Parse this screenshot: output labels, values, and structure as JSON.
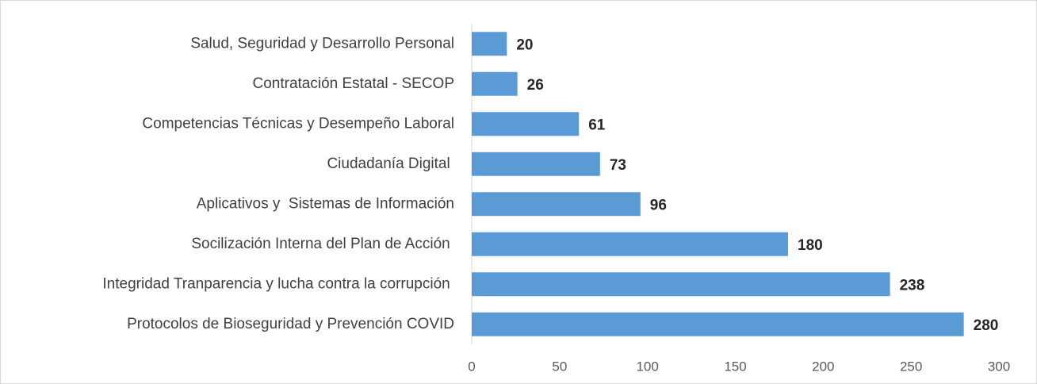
{
  "chart_data": {
    "type": "bar",
    "orientation": "horizontal",
    "categories": [
      "Salud, Seguridad y Desarrollo Personal",
      "Contratación Estatal - SECOP",
      "Competencias Técnicas y Desempeño Laboral",
      "Ciudadanía Digital ",
      "Aplicativos y  Sistemas de Información",
      "Socilización Interna del Plan de Acción ",
      "Integridad Tranparencia y lucha contra la corrupción ",
      "Protocolos de Bioseguridad y Prevención COVID"
    ],
    "values": [
      20,
      26,
      61,
      73,
      96,
      180,
      238,
      280
    ],
    "color": "#5b9bd5",
    "xlim": [
      0,
      300
    ],
    "xticks": [
      0,
      50,
      100,
      150,
      200,
      250,
      300
    ],
    "grid": false
  }
}
